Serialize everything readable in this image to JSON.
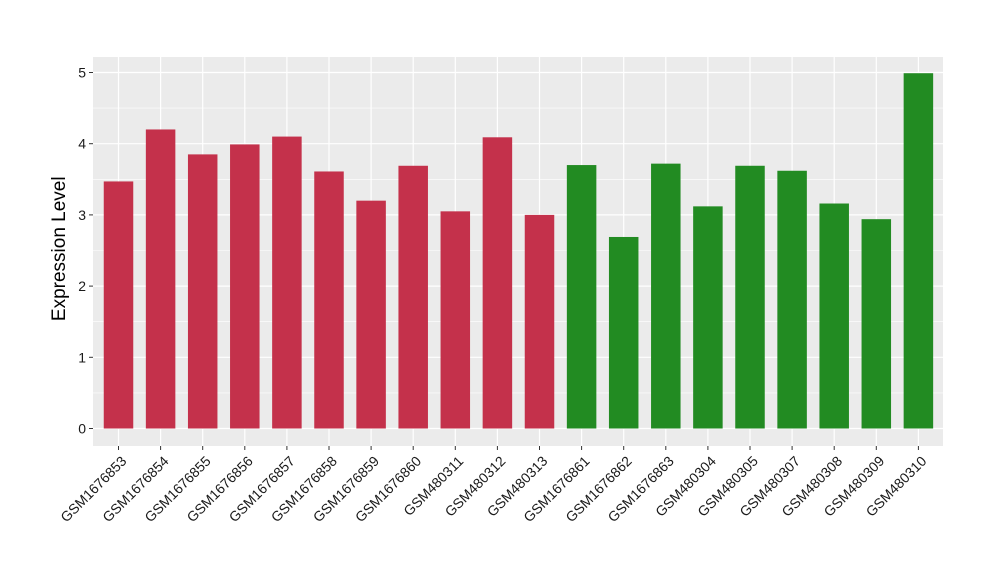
{
  "chart_data": {
    "type": "bar",
    "title": "",
    "xlabel": "",
    "ylabel": "Expression Level",
    "ylim": [
      0,
      5.1
    ],
    "yticks": [
      0,
      1,
      2,
      3,
      4,
      5
    ],
    "grid": true,
    "legend": "none",
    "categories": [
      "GSM1676853",
      "GSM1676854",
      "GSM1676855",
      "GSM1676856",
      "GSM1676857",
      "GSM1676858",
      "GSM1676859",
      "GSM1676860",
      "GSM480311",
      "GSM480312",
      "GSM480313",
      "GSM1676861",
      "GSM1676862",
      "GSM1676863",
      "GSM480304",
      "GSM480305",
      "GSM480307",
      "GSM480308",
      "GSM480309",
      "GSM480310"
    ],
    "values": [
      3.47,
      4.2,
      3.85,
      3.99,
      4.1,
      3.61,
      3.2,
      3.69,
      3.05,
      4.09,
      3.0,
      3.7,
      2.69,
      3.72,
      3.12,
      3.69,
      3.62,
      3.16,
      2.94,
      4.99
    ],
    "group_index": [
      0,
      0,
      0,
      0,
      0,
      0,
      0,
      0,
      0,
      0,
      0,
      1,
      1,
      1,
      1,
      1,
      1,
      1,
      1,
      1
    ],
    "group_colors": [
      "#c4314b",
      "#228b22"
    ],
    "panel_background": "#ebebeb",
    "gridline_color": "#ffffff"
  }
}
